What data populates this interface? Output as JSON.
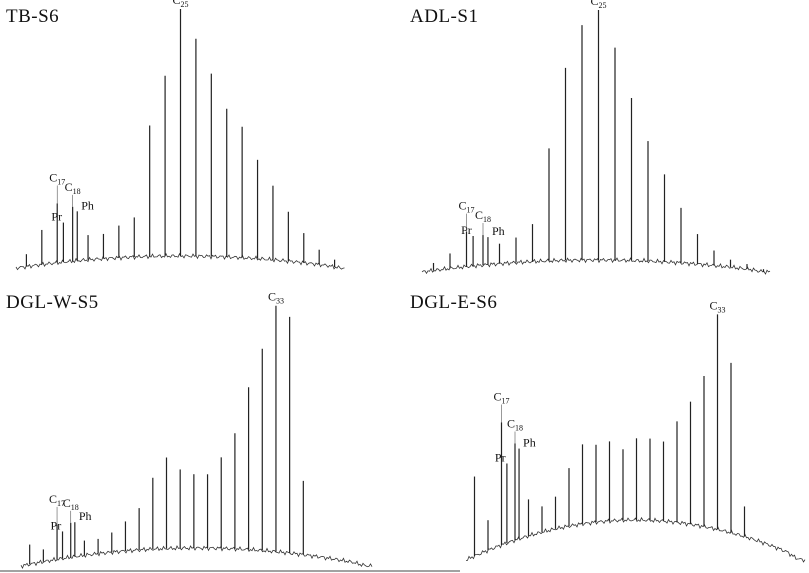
{
  "chart_data": [
    {
      "type": "chromatogram",
      "title": "TB-S6",
      "xlim": [
        14,
        36
      ],
      "ylim": [
        0,
        100
      ],
      "x": [
        15,
        16,
        17,
        18,
        19,
        20,
        21,
        22,
        23,
        24,
        25,
        26,
        27,
        28,
        29,
        30,
        31,
        32,
        33,
        34,
        35
      ],
      "values": [
        5,
        14,
        24,
        22,
        10,
        10,
        13,
        16,
        53,
        73,
        100,
        88,
        74,
        60,
        53,
        40,
        30,
        20,
        12,
        6,
        3
      ],
      "isoprenoids": [
        {
          "name": "Pr",
          "x": 17.4,
          "value": 16
        },
        {
          "name": "Ph",
          "x": 18.3,
          "value": 20
        }
      ],
      "labels": [
        {
          "text": "C",
          "sub": "17",
          "x": 17
        },
        {
          "text": "C",
          "sub": "18",
          "x": 18
        },
        {
          "text": "C",
          "sub": "25",
          "x": 25
        }
      ]
    },
    {
      "type": "chromatogram",
      "title": "ADL-S1",
      "xlim": [
        14,
        36
      ],
      "ylim": [
        0,
        100
      ],
      "x": [
        15,
        16,
        17,
        18,
        19,
        20,
        21,
        22,
        23,
        24,
        25,
        26,
        27,
        28,
        29,
        30,
        31,
        32,
        33,
        34,
        35
      ],
      "values": [
        3,
        6,
        14,
        12,
        8,
        10,
        15,
        45,
        77,
        94,
        100,
        85,
        65,
        48,
        35,
        22,
        12,
        6,
        3,
        2,
        1
      ],
      "isoprenoids": [
        {
          "name": "Pr",
          "x": 17.4,
          "value": 12
        },
        {
          "name": "Ph",
          "x": 18.3,
          "value": 11
        }
      ],
      "labels": [
        {
          "text": "C",
          "sub": "17",
          "x": 17
        },
        {
          "text": "C",
          "sub": "18",
          "x": 18
        },
        {
          "text": "C",
          "sub": "25",
          "x": 25
        }
      ]
    },
    {
      "type": "chromatogram",
      "title": "DGL-W-S5",
      "xlim": [
        14,
        36
      ],
      "ylim": [
        0,
        100
      ],
      "x": [
        15,
        16,
        17,
        18,
        19,
        20,
        21,
        22,
        23,
        24,
        25,
        26,
        27,
        28,
        29,
        30,
        31,
        32,
        33,
        34,
        35
      ],
      "values": [
        8,
        5,
        14,
        14,
        6,
        6,
        8,
        12,
        17,
        29,
        37,
        32,
        30,
        30,
        37,
        47,
        66,
        82,
        100,
        96,
        30
      ],
      "isoprenoids": [
        {
          "name": "Pr",
          "x": 17.4,
          "value": 11
        },
        {
          "name": "Ph",
          "x": 18.3,
          "value": 14
        }
      ],
      "labels": [
        {
          "text": "C",
          "sub": "17",
          "x": 17
        },
        {
          "text": "C",
          "sub": "18",
          "x": 18
        },
        {
          "text": "C",
          "sub": "33",
          "x": 33
        }
      ]
    },
    {
      "type": "chromatogram",
      "title": "DGL-E-S6",
      "xlim": [
        14,
        36
      ],
      "ylim": [
        0,
        100
      ],
      "x": [
        15,
        16,
        17,
        18,
        19,
        20,
        21,
        22,
        23,
        24,
        25,
        26,
        27,
        28,
        29,
        30,
        31,
        32,
        33,
        34,
        35
      ],
      "values": [
        37,
        14,
        57,
        45,
        17,
        12,
        15,
        27,
        37,
        36,
        37,
        33,
        38,
        38,
        37,
        47,
        57,
        70,
        100,
        79,
        14
      ],
      "isoprenoids": [
        {
          "name": "Pr",
          "x": 17.4,
          "value": 37
        },
        {
          "name": "Ph",
          "x": 18.3,
          "value": 42
        }
      ],
      "labels": [
        {
          "text": "C",
          "sub": "17",
          "x": 17
        },
        {
          "text": "C",
          "sub": "18",
          "x": 18
        },
        {
          "text": "C",
          "sub": "33",
          "x": 33
        }
      ]
    }
  ]
}
